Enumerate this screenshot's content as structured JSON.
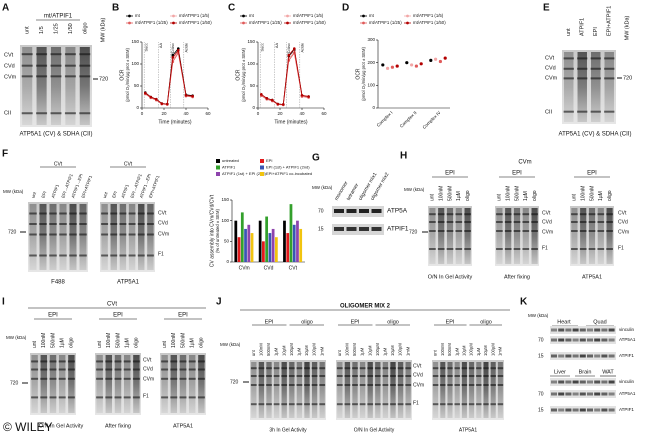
{
  "panels": {
    "A": {
      "letter": "A",
      "group": "mt/ATPIF1",
      "lanes": [
        "unt",
        "1/5",
        "1/25",
        "1/50",
        "oligo"
      ],
      "mw_title": "MW (kDa)",
      "mw": [
        "720"
      ],
      "bands": [
        "CVt",
        "CVd",
        "CVm",
        "CII"
      ],
      "caption": "ATP5A1 (CV) & SDHA (CII)"
    },
    "B": {
      "letter": "B"
    },
    "C": {
      "letter": "C"
    },
    "D": {
      "letter": "D"
    },
    "E": {
      "letter": "E",
      "lanes": [
        "unt",
        "ATPIF1",
        "EPI",
        "EPI+ATPIF1"
      ],
      "mw_title": "MW (kDa)",
      "mw": [
        "720"
      ],
      "bands": [
        "CVt",
        "CVd",
        "CVm",
        "CII"
      ],
      "caption": "ATP5A1 (CV) & SDHA (CII)"
    },
    "F": {
      "letter": "F",
      "header": "CVt",
      "lanes": [
        "unt",
        "EPI",
        "ATPIF1",
        "EPI→ATPIF1",
        "ATPIF1→EPI",
        "EPI+ATPIF1"
      ],
      "mw_title": "MW (kDa)",
      "mw": [
        "720"
      ],
      "bands": [
        "CVt",
        "CVd",
        "CVm",
        "F1"
      ],
      "captions": [
        "F488",
        "ATP5A1"
      ]
    },
    "G": {
      "letter": "G",
      "lanes": [
        "monomer",
        "tetramer",
        "oligomer mix1",
        "oligomer mix2"
      ],
      "mw_title": "MW (kDa)",
      "mw": [
        "70",
        "15"
      ],
      "blots": [
        "ATP5A",
        "ATPIF1"
      ]
    },
    "H": {
      "letter": "H",
      "header": "CVm",
      "group": "EPI",
      "lanes": [
        "unt",
        "100nM",
        "500nM",
        "1µM",
        "oligo"
      ],
      "mw_title": "MW (kDa)",
      "mw": [
        "720"
      ],
      "bands": [
        "CVt",
        "CVd",
        "CVm",
        "F1"
      ],
      "captions": [
        "O/N In Gel Activity",
        "After fixing",
        "ATP5A1"
      ]
    },
    "I": {
      "letter": "I",
      "header": "CVt",
      "group": "EPI",
      "lanes": [
        "unt",
        "100nM",
        "500nM",
        "1µM",
        "oligo"
      ],
      "mw_title": "MW (kDa)",
      "mw": [
        "720"
      ],
      "bands": [
        "CVt",
        "CVd",
        "CVm",
        "F1"
      ],
      "captions": [
        "O/N In Gel Activity",
        "After fixing",
        "ATP5A1"
      ],
      "watermark": "© WILEY"
    },
    "J": {
      "letter": "J",
      "header": "OLIGOMER MIX 2",
      "groups": [
        "EPI",
        "oligo"
      ],
      "lanes": [
        "unt",
        "100nM",
        "500nM",
        "1µM",
        "10µM",
        "100µM",
        "1µM",
        "10µM",
        "100µM",
        "1mM"
      ],
      "mw_title": "MW (kDa)",
      "mw": [
        "720"
      ],
      "bands": [
        "CVt",
        "CVd",
        "CVm",
        "F1"
      ],
      "captions": [
        "3h In Gel Activity",
        "O/N In Gel Activity",
        "ATP5A1"
      ]
    },
    "K": {
      "letter": "K",
      "mw_title": "MW (kDa)",
      "tissues_top": [
        "Heart",
        "Quad"
      ],
      "tissues_bottom": [
        "Liver",
        "Brain",
        "WAT"
      ],
      "blots": [
        "vinculin",
        "ATP5A1",
        "ATPIF1"
      ],
      "mw": [
        "70",
        "15"
      ]
    }
  },
  "chart_data": [
    {
      "type": "line",
      "ylabel": "OCR",
      "ylabel_unit": "(pmol O₂/min/µg prot ± SEM)",
      "xlabel": "Time (minutes)",
      "x": [
        3,
        8,
        13,
        18,
        23,
        28,
        33,
        40,
        46
      ],
      "xlim": [
        0,
        60
      ],
      "xticks": [
        0,
        20,
        40,
        60
      ],
      "ylim": [
        0,
        150
      ],
      "yticks": [
        0,
        50,
        100,
        150
      ],
      "annotations": [
        {
          "text": "Succ",
          "x": 2
        },
        {
          "text": "AA",
          "x": 15
        },
        {
          "text": "TMPD/Asc",
          "x": 26
        },
        {
          "text": "Azide",
          "x": 38
        }
      ],
      "series": [
        {
          "name": "mt",
          "color": "#000000",
          "values": [
            35,
            25,
            20,
            10,
            9,
            120,
            135,
            30,
            28
          ]
        },
        {
          "name": "mt/ATPIF1 (1/5)",
          "color": "#f2a6a6",
          "values": [
            33,
            24,
            19,
            9,
            8,
            110,
            128,
            28,
            26
          ]
        },
        {
          "name": "mt/ATPIF1 (1/25)",
          "color": "#e05a5a",
          "values": [
            32,
            23,
            18,
            9,
            8,
            105,
            125,
            27,
            25
          ]
        },
        {
          "name": "mt/ATPIF1 (1/50)",
          "color": "#b30000",
          "values": [
            34,
            25,
            20,
            10,
            9,
            115,
            131,
            29,
            27
          ]
        }
      ]
    },
    {
      "type": "line",
      "ylabel": "OCR",
      "ylabel_unit": "(pmol O₂/min/µg prot ± SEM)",
      "xlabel": "Time (minutes)",
      "x": [
        3,
        8,
        13,
        18,
        23,
        28,
        33,
        40,
        46
      ],
      "xlim": [
        0,
        60
      ],
      "xticks": [
        0,
        20,
        40,
        60
      ],
      "ylim": [
        0,
        150
      ],
      "yticks": [
        0,
        50,
        100,
        150
      ],
      "annotations": [
        {
          "text": "Succ",
          "x": 2
        },
        {
          "text": "AA",
          "x": 15
        },
        {
          "text": "TMPD/Asc",
          "x": 26
        },
        {
          "text": "Azide",
          "x": 38
        }
      ],
      "series": [
        {
          "name": "mt",
          "color": "#000000",
          "values": [
            30,
            22,
            18,
            9,
            8,
            118,
            132,
            28,
            26
          ]
        },
        {
          "name": "mt/ATPIF1 (1/5)",
          "color": "#f2a6a6",
          "values": [
            29,
            21,
            17,
            8,
            8,
            112,
            128,
            27,
            25
          ]
        },
        {
          "name": "mt/ATPIF1 (1/25)",
          "color": "#e05a5a",
          "values": [
            28,
            20,
            16,
            8,
            7,
            108,
            125,
            26,
            24
          ]
        },
        {
          "name": "mt/ATPIF1 (1/50)",
          "color": "#b30000",
          "values": [
            31,
            22,
            18,
            9,
            8,
            120,
            135,
            29,
            26
          ]
        }
      ]
    },
    {
      "type": "dot",
      "ylabel": "OCR",
      "ylabel_unit": "(pmol O₂/min/µg prot ± SEM)",
      "categories": [
        "Complex I",
        "Complex II",
        "Complex IV"
      ],
      "ylim": [
        0,
        300
      ],
      "yticks": [
        0,
        100,
        200,
        300
      ],
      "series": [
        {
          "name": "mt",
          "color": "#000000",
          "values": [
            190,
            200,
            210
          ]
        },
        {
          "name": "mt/ATPIF1 (1/5)",
          "color": "#f2a6a6",
          "values": [
            175,
            190,
            215
          ]
        },
        {
          "name": "mt/ATPIF1 (1/25)",
          "color": "#e05a5a",
          "values": [
            180,
            185,
            205
          ]
        },
        {
          "name": "mt/ATPIF1 (1/50)",
          "color": "#b30000",
          "values": [
            185,
            195,
            220
          ]
        }
      ]
    },
    {
      "type": "bar",
      "ylabel": "CV assembly into CVm/CVd/CVt",
      "ylabel_unit": "(% of untreated ± SEM)",
      "categories": [
        "CVm",
        "CVd",
        "CVt"
      ],
      "ylim": [
        0,
        150
      ],
      "yticks": [
        0,
        50,
        100,
        150
      ],
      "series": [
        {
          "name": "untreated",
          "color": "#000000",
          "values": [
            100,
            100,
            100
          ]
        },
        {
          "name": "EPI",
          "color": "#e31a1c",
          "values": [
            60,
            50,
            70
          ]
        },
        {
          "name": "ATPIF1",
          "color": "#33a02c",
          "values": [
            120,
            110,
            140
          ]
        },
        {
          "name": "EPI (1st) + ATPIF1 (2nd)",
          "color": "#3a55b4",
          "values": [
            80,
            70,
            90
          ]
        },
        {
          "name": "ATPIF1 (1st) + EPI (2nd)",
          "color": "#8e44ad",
          "values": [
            90,
            80,
            100
          ]
        },
        {
          "name": "EPI+ATPIF1 co-incubated",
          "color": "#f1c40f",
          "values": [
            70,
            60,
            80
          ]
        }
      ]
    }
  ]
}
